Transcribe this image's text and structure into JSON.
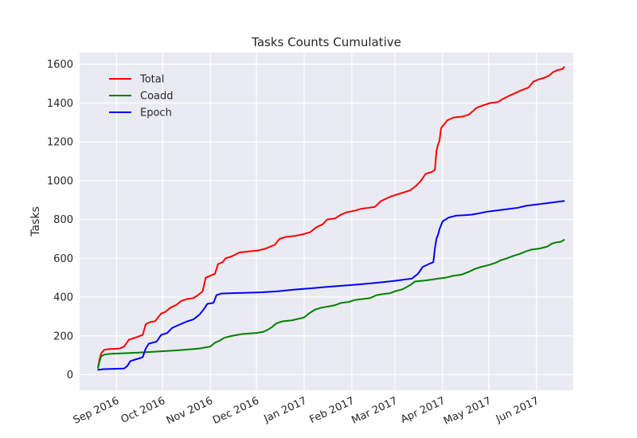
{
  "chart_data": {
    "type": "line",
    "title": "Tasks Counts Cumulative",
    "xlabel": "",
    "ylabel": "Tasks",
    "ylim": [
      -80,
      1660
    ],
    "xlim": [
      "2016-08-08",
      "2017-06-25"
    ],
    "y_ticks": [
      0,
      200,
      400,
      600,
      800,
      1000,
      1200,
      1400,
      1600
    ],
    "x_ticks": [
      {
        "date": "2016-09-01",
        "label": "Sep 2016"
      },
      {
        "date": "2016-10-01",
        "label": "Oct 2016"
      },
      {
        "date": "2016-11-01",
        "label": "Nov 2016"
      },
      {
        "date": "2016-12-01",
        "label": "Dec 2016"
      },
      {
        "date": "2017-01-01",
        "label": "Jan 2017"
      },
      {
        "date": "2017-02-01",
        "label": "Feb 2017"
      },
      {
        "date": "2017-03-01",
        "label": "Mar 2017"
      },
      {
        "date": "2017-04-01",
        "label": "Apr 2017"
      },
      {
        "date": "2017-05-01",
        "label": "May 2017"
      },
      {
        "date": "2017-06-01",
        "label": "Jun 2017"
      }
    ],
    "grid": true,
    "background": "#eaeaf2",
    "legend_position": "top-left",
    "series": [
      {
        "name": "Total",
        "color": "#ff0000",
        "points": [
          [
            "2016-08-20",
            40
          ],
          [
            "2016-08-21",
            80
          ],
          [
            "2016-08-22",
            110
          ],
          [
            "2016-08-24",
            128
          ],
          [
            "2016-08-27",
            132
          ],
          [
            "2016-09-03",
            135
          ],
          [
            "2016-09-06",
            145
          ],
          [
            "2016-09-09",
            180
          ],
          [
            "2016-09-13",
            190
          ],
          [
            "2016-09-18",
            205
          ],
          [
            "2016-09-20",
            260
          ],
          [
            "2016-09-23",
            272
          ],
          [
            "2016-09-26",
            275
          ],
          [
            "2016-09-30",
            315
          ],
          [
            "2016-10-03",
            325
          ],
          [
            "2016-10-06",
            345
          ],
          [
            "2016-10-10",
            360
          ],
          [
            "2016-10-13",
            380
          ],
          [
            "2016-10-17",
            390
          ],
          [
            "2016-10-21",
            395
          ],
          [
            "2016-10-24",
            410
          ],
          [
            "2016-10-27",
            430
          ],
          [
            "2016-10-29",
            500
          ],
          [
            "2016-11-01",
            510
          ],
          [
            "2016-11-04",
            520
          ],
          [
            "2016-11-06",
            570
          ],
          [
            "2016-11-09",
            580
          ],
          [
            "2016-11-11",
            600
          ],
          [
            "2016-11-15",
            610
          ],
          [
            "2016-11-20",
            630
          ],
          [
            "2016-11-26",
            635
          ],
          [
            "2016-12-02",
            640
          ],
          [
            "2016-12-07",
            650
          ],
          [
            "2016-12-10",
            660
          ],
          [
            "2016-12-13",
            670
          ],
          [
            "2016-12-16",
            700
          ],
          [
            "2016-12-20",
            710
          ],
          [
            "2016-12-26",
            715
          ],
          [
            "2017-01-01",
            725
          ],
          [
            "2017-01-05",
            735
          ],
          [
            "2017-01-09",
            760
          ],
          [
            "2017-01-13",
            775
          ],
          [
            "2017-01-16",
            800
          ],
          [
            "2017-01-21",
            805
          ],
          [
            "2017-01-25",
            825
          ],
          [
            "2017-01-29",
            838
          ],
          [
            "2017-02-03",
            845
          ],
          [
            "2017-02-07",
            855
          ],
          [
            "2017-02-12",
            860
          ],
          [
            "2017-02-16",
            865
          ],
          [
            "2017-02-20",
            895
          ],
          [
            "2017-02-24",
            910
          ],
          [
            "2017-02-27",
            920
          ],
          [
            "2017-03-03",
            930
          ],
          [
            "2017-03-07",
            940
          ],
          [
            "2017-03-11",
            950
          ],
          [
            "2017-03-15",
            975
          ],
          [
            "2017-03-18",
            1000
          ],
          [
            "2017-03-21",
            1035
          ],
          [
            "2017-03-25",
            1045
          ],
          [
            "2017-03-27",
            1055
          ],
          [
            "2017-03-28",
            1150
          ],
          [
            "2017-03-29",
            1185
          ],
          [
            "2017-03-30",
            1205
          ],
          [
            "2017-03-31",
            1270
          ],
          [
            "2017-04-02",
            1290
          ],
          [
            "2017-04-04",
            1310
          ],
          [
            "2017-04-08",
            1325
          ],
          [
            "2017-04-14",
            1330
          ],
          [
            "2017-04-18",
            1340
          ],
          [
            "2017-04-21",
            1360
          ],
          [
            "2017-04-23",
            1375
          ],
          [
            "2017-04-28",
            1390
          ],
          [
            "2017-05-02",
            1400
          ],
          [
            "2017-05-07",
            1405
          ],
          [
            "2017-05-10",
            1420
          ],
          [
            "2017-05-15",
            1440
          ],
          [
            "2017-05-18",
            1450
          ],
          [
            "2017-05-22",
            1465
          ],
          [
            "2017-05-27",
            1480
          ],
          [
            "2017-05-30",
            1510
          ],
          [
            "2017-06-02",
            1520
          ],
          [
            "2017-06-06",
            1530
          ],
          [
            "2017-06-09",
            1540
          ],
          [
            "2017-06-12",
            1560
          ],
          [
            "2017-06-15",
            1570
          ],
          [
            "2017-06-18",
            1575
          ],
          [
            "2017-06-19",
            1585
          ]
        ]
      },
      {
        "name": "Coadd",
        "color": "#008000",
        "points": [
          [
            "2016-08-20",
            35
          ],
          [
            "2016-08-21",
            70
          ],
          [
            "2016-08-22",
            95
          ],
          [
            "2016-08-24",
            103
          ],
          [
            "2016-08-28",
            108
          ],
          [
            "2016-09-10",
            112
          ],
          [
            "2016-09-25",
            118
          ],
          [
            "2016-10-10",
            125
          ],
          [
            "2016-10-25",
            135
          ],
          [
            "2016-11-01",
            145
          ],
          [
            "2016-11-04",
            165
          ],
          [
            "2016-11-07",
            175
          ],
          [
            "2016-11-10",
            190
          ],
          [
            "2016-11-15",
            200
          ],
          [
            "2016-11-22",
            210
          ],
          [
            "2016-12-01",
            215
          ],
          [
            "2016-12-05",
            220
          ],
          [
            "2016-12-08",
            230
          ],
          [
            "2016-12-11",
            245
          ],
          [
            "2016-12-14",
            265
          ],
          [
            "2016-12-18",
            275
          ],
          [
            "2016-12-24",
            280
          ],
          [
            "2017-01-01",
            295
          ],
          [
            "2017-01-04",
            315
          ],
          [
            "2017-01-08",
            335
          ],
          [
            "2017-01-12",
            345
          ],
          [
            "2017-01-17",
            352
          ],
          [
            "2017-01-21",
            358
          ],
          [
            "2017-01-25",
            370
          ],
          [
            "2017-01-30",
            375
          ],
          [
            "2017-02-03",
            385
          ],
          [
            "2017-02-08",
            390
          ],
          [
            "2017-02-13",
            395
          ],
          [
            "2017-02-17",
            410
          ],
          [
            "2017-02-21",
            415
          ],
          [
            "2017-02-26",
            420
          ],
          [
            "2017-03-01",
            430
          ],
          [
            "2017-03-06",
            440
          ],
          [
            "2017-03-11",
            462
          ],
          [
            "2017-03-14",
            480
          ],
          [
            "2017-03-20",
            485
          ],
          [
            "2017-03-25",
            490
          ],
          [
            "2017-03-29",
            495
          ],
          [
            "2017-04-03",
            500
          ],
          [
            "2017-04-08",
            510
          ],
          [
            "2017-04-13",
            515
          ],
          [
            "2017-04-18",
            530
          ],
          [
            "2017-04-22",
            545
          ],
          [
            "2017-04-26",
            555
          ],
          [
            "2017-05-01",
            565
          ],
          [
            "2017-05-05",
            575
          ],
          [
            "2017-05-09",
            590
          ],
          [
            "2017-05-13",
            600
          ],
          [
            "2017-05-17",
            612
          ],
          [
            "2017-05-21",
            622
          ],
          [
            "2017-05-25",
            635
          ],
          [
            "2017-05-29",
            645
          ],
          [
            "2017-06-03",
            650
          ],
          [
            "2017-06-08",
            660
          ],
          [
            "2017-06-11",
            675
          ],
          [
            "2017-06-14",
            682
          ],
          [
            "2017-06-17",
            685
          ],
          [
            "2017-06-19",
            695
          ]
        ]
      },
      {
        "name": "Epoch",
        "color": "#0000ff",
        "points": [
          [
            "2016-08-20",
            25
          ],
          [
            "2016-08-23",
            28
          ],
          [
            "2016-08-28",
            30
          ],
          [
            "2016-09-06",
            32
          ],
          [
            "2016-09-08",
            45
          ],
          [
            "2016-09-10",
            70
          ],
          [
            "2016-09-14",
            80
          ],
          [
            "2016-09-18",
            90
          ],
          [
            "2016-09-20",
            135
          ],
          [
            "2016-09-22",
            160
          ],
          [
            "2016-09-27",
            170
          ],
          [
            "2016-09-30",
            205
          ],
          [
            "2016-10-04",
            215
          ],
          [
            "2016-10-07",
            240
          ],
          [
            "2016-10-11",
            255
          ],
          [
            "2016-10-14",
            265
          ],
          [
            "2016-10-17",
            275
          ],
          [
            "2016-10-21",
            285
          ],
          [
            "2016-10-25",
            310
          ],
          [
            "2016-10-28",
            340
          ],
          [
            "2016-10-30",
            365
          ],
          [
            "2016-11-03",
            370
          ],
          [
            "2016-11-05",
            410
          ],
          [
            "2016-11-08",
            418
          ],
          [
            "2016-11-15",
            420
          ],
          [
            "2016-11-25",
            422
          ],
          [
            "2016-12-05",
            425
          ],
          [
            "2016-12-15",
            430
          ],
          [
            "2016-12-25",
            438
          ],
          [
            "2017-01-05",
            445
          ],
          [
            "2017-01-15",
            452
          ],
          [
            "2017-01-25",
            458
          ],
          [
            "2017-02-05",
            465
          ],
          [
            "2017-02-15",
            472
          ],
          [
            "2017-02-25",
            480
          ],
          [
            "2017-03-05",
            488
          ],
          [
            "2017-03-12",
            495
          ],
          [
            "2017-03-16",
            520
          ],
          [
            "2017-03-19",
            555
          ],
          [
            "2017-03-23",
            570
          ],
          [
            "2017-03-26",
            580
          ],
          [
            "2017-03-27",
            650
          ],
          [
            "2017-03-28",
            700
          ],
          [
            "2017-03-29",
            720
          ],
          [
            "2017-03-30",
            750
          ],
          [
            "2017-04-01",
            790
          ],
          [
            "2017-04-05",
            810
          ],
          [
            "2017-04-10",
            820
          ],
          [
            "2017-04-15",
            822
          ],
          [
            "2017-04-20",
            825
          ],
          [
            "2017-04-25",
            832
          ],
          [
            "2017-04-30",
            840
          ],
          [
            "2017-05-05",
            845
          ],
          [
            "2017-05-10",
            850
          ],
          [
            "2017-05-15",
            855
          ],
          [
            "2017-05-20",
            860
          ],
          [
            "2017-05-25",
            870
          ],
          [
            "2017-05-30",
            875
          ],
          [
            "2017-06-04",
            880
          ],
          [
            "2017-06-09",
            885
          ],
          [
            "2017-06-14",
            890
          ],
          [
            "2017-06-19",
            895
          ]
        ]
      }
    ]
  }
}
